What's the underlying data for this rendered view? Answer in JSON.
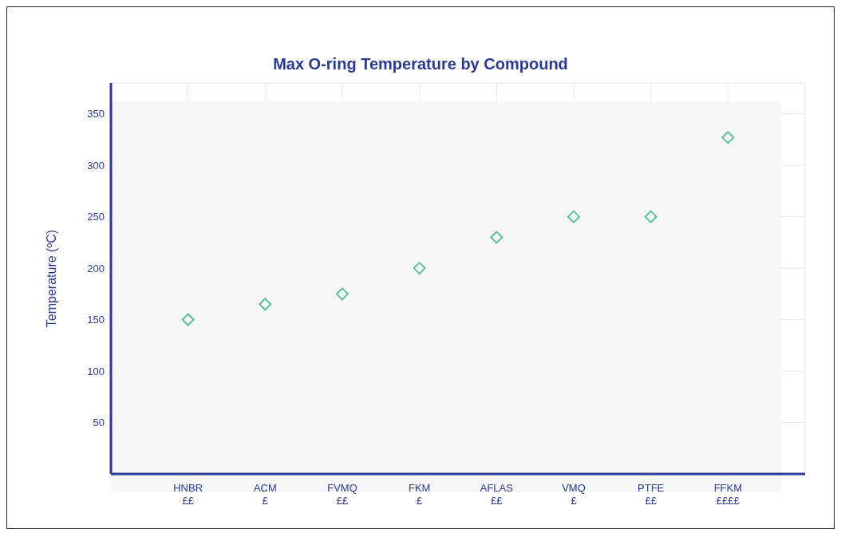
{
  "chart_data": {
    "type": "scatter",
    "title": "Max O-ring Temperature by Compound",
    "ylabel": "Temperature (ºC)",
    "categories": [
      "HNBR\n££",
      "ACM\n£",
      "FVMQ\n££",
      "FKM\n£",
      "AFLAS\n££",
      "VMQ\n£",
      "PTFE\n££",
      "FFKM\n££££"
    ],
    "series": [
      {
        "color": "#5bbf98",
        "values": [
          150,
          165,
          175,
          200,
          230,
          250,
          250,
          327
        ]
      }
    ],
    "ylim": [
      0,
      380
    ],
    "yticks": [
      50,
      100,
      150,
      200,
      250,
      300,
      350
    ],
    "grid": true,
    "marker": "diamond",
    "legend": false
  }
}
